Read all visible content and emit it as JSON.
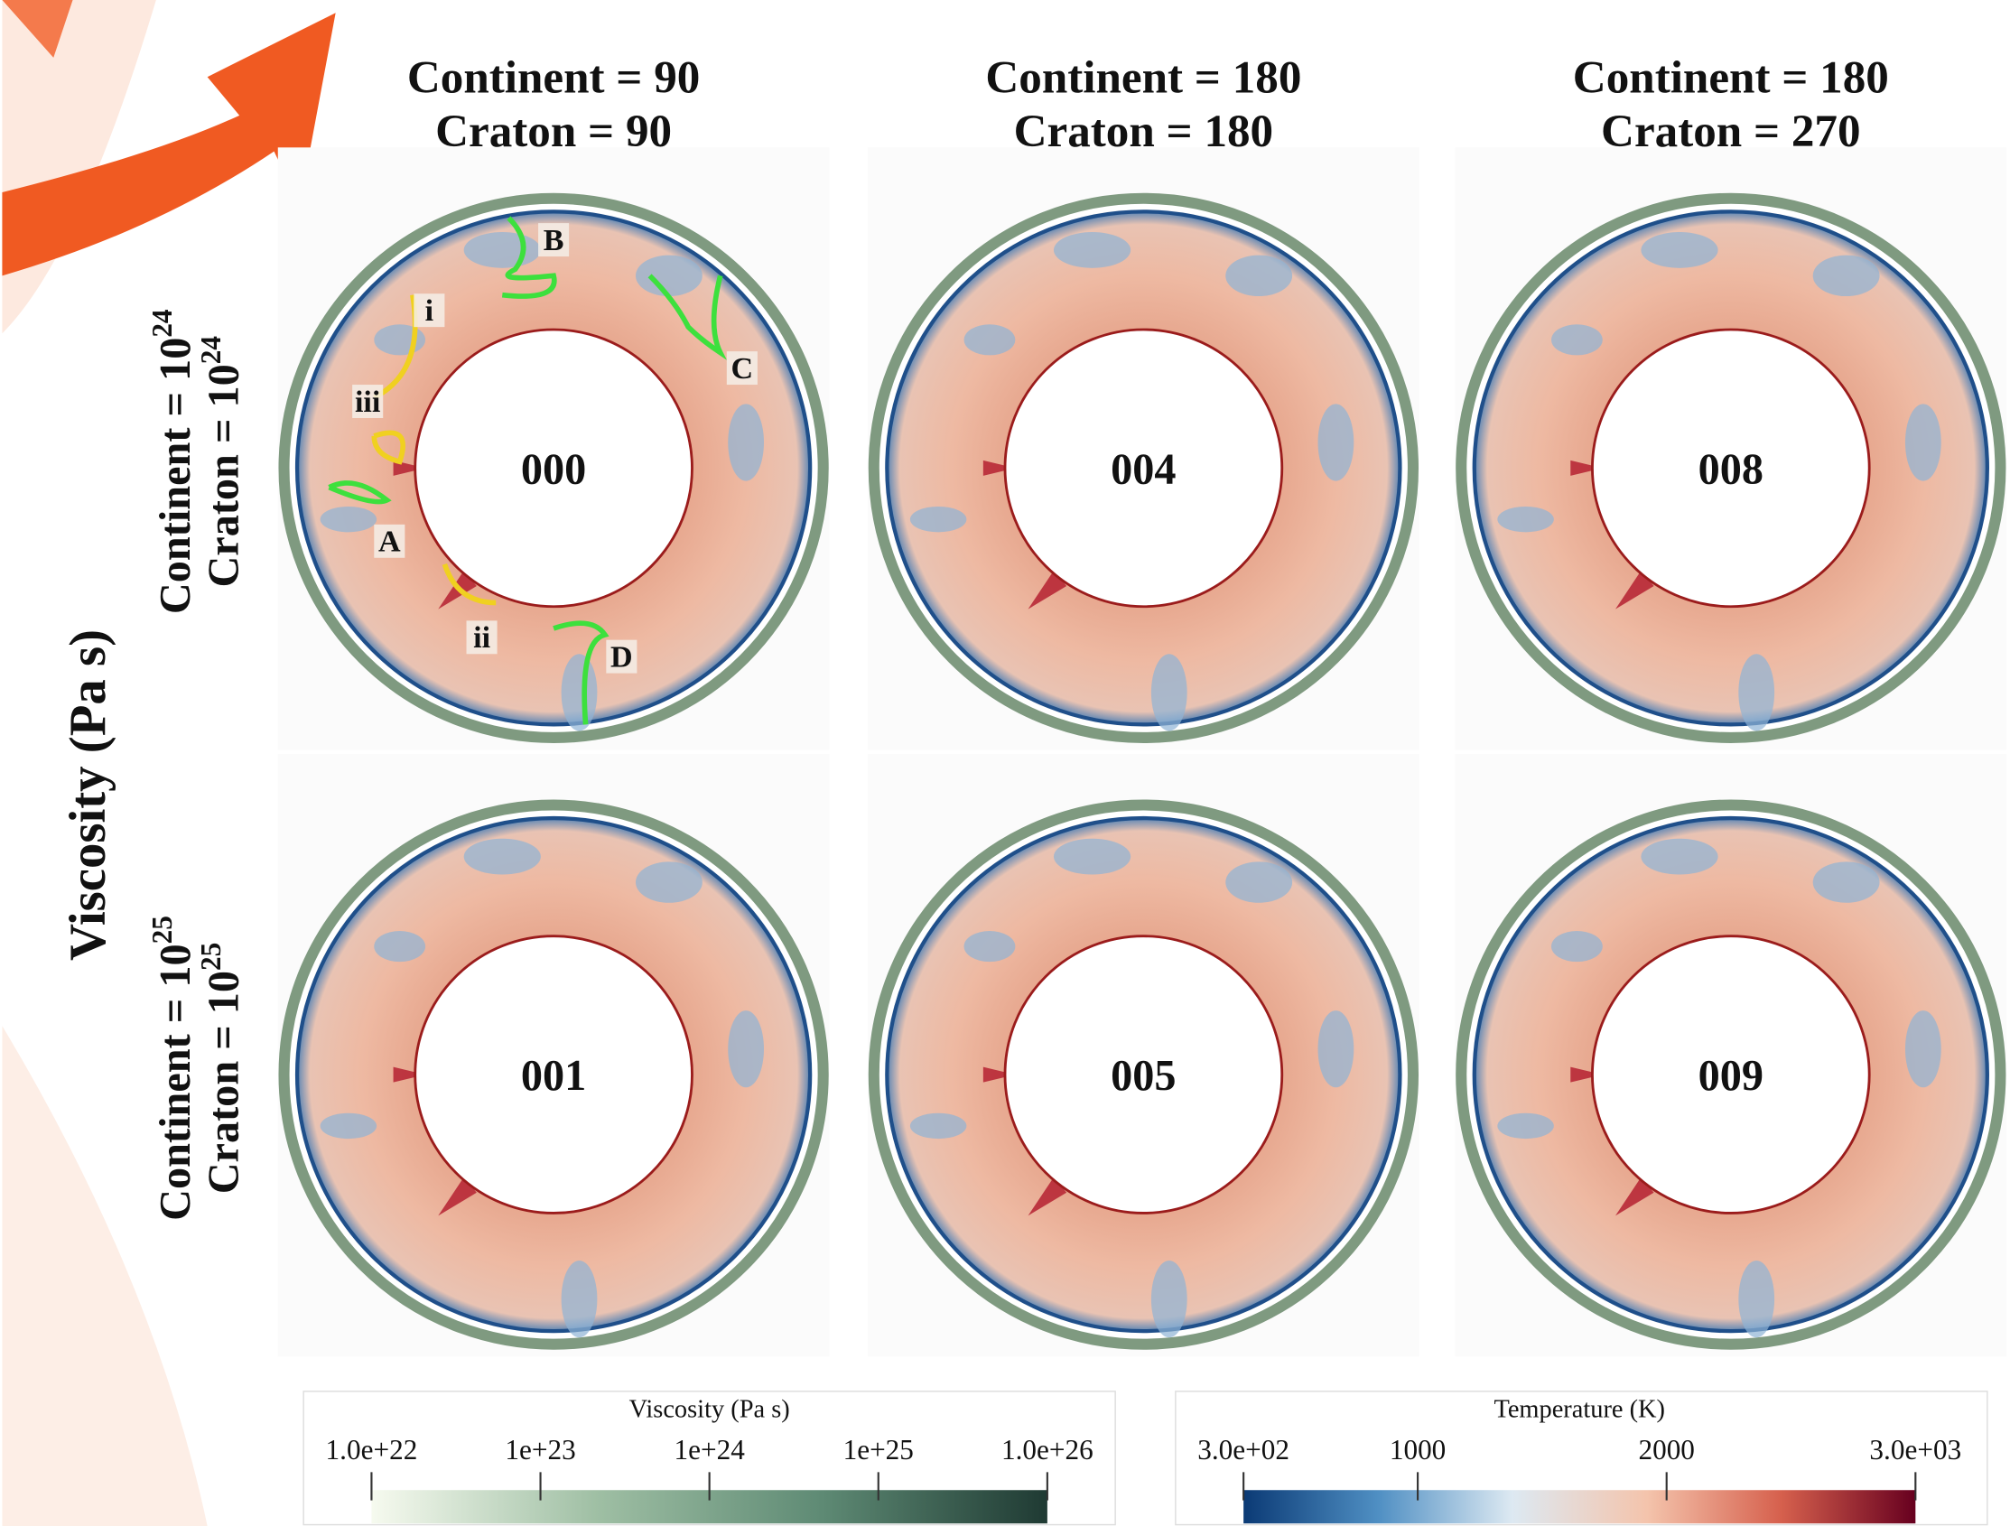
{
  "figure": {
    "column_headers": [
      [
        "Continent = 90",
        "Craton  = 90"
      ],
      [
        "Continent  = 180",
        "Craton = 180"
      ],
      [
        "Continent  = 180",
        "Craton  = 270"
      ]
    ],
    "row_labels": [
      [
        {
          "text": "Continent = 10",
          "exponent": "24"
        },
        {
          "text": "Craton = 10",
          "exponent": "24"
        }
      ],
      [
        {
          "text": "Continent = 10",
          "exponent": "25"
        },
        {
          "text": "Craton = 10",
          "exponent": "25"
        }
      ]
    ],
    "y_label": "Viscosity (Pa s)",
    "panels": [
      [
        "000",
        "004",
        "008"
      ],
      [
        "001",
        "005",
        "009"
      ]
    ],
    "annotations": [
      "B",
      "C",
      "i",
      "iii",
      "A",
      "ii",
      "D"
    ],
    "colorbars": [
      {
        "title": "Viscosity (Pa s)",
        "scale": "log",
        "range": [
          1e+22,
          1e+26
        ],
        "colors": [
          "#f6faef",
          "#9fbfa4",
          "#5e8a74",
          "#1f3a33"
        ],
        "ticks": [
          {
            "value": 1e+22,
            "label": "1.0e+22"
          },
          {
            "value": 1e+23,
            "label": "1e+23"
          },
          {
            "value": 1e+24,
            "label": "1e+24"
          },
          {
            "value": 1e+25,
            "label": "1e+25"
          },
          {
            "value": 1e+26,
            "label": "1.0e+26"
          }
        ]
      },
      {
        "title": "Temperature (K)",
        "scale": "linear",
        "range": [
          300,
          3000
        ],
        "colors": [
          "#0b3a75",
          "#4f8fc3",
          "#dde9f2",
          "#f4c4ac",
          "#d6604d",
          "#67001f"
        ],
        "ticks": [
          {
            "value": 300,
            "label": "3.0e+02"
          },
          1000,
          2000,
          {
            "value": 3000,
            "label": "3.0e+03"
          }
        ]
      }
    ]
  }
}
